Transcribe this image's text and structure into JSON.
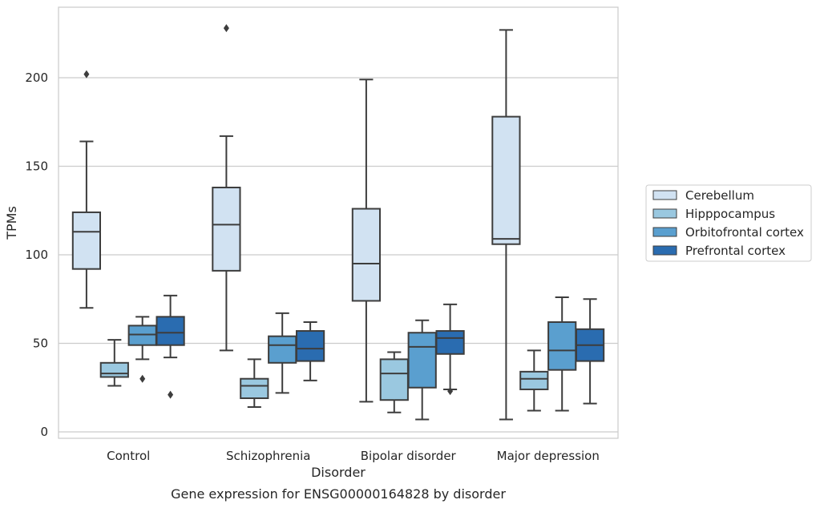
{
  "chart_data": {
    "type": "box",
    "caption": "Gene expression for ENSG00000164828 by disorder",
    "xlabel": "Disorder",
    "ylabel": "TPMs",
    "ylim": [
      -4,
      240
    ],
    "yticks": [
      0,
      50,
      100,
      150,
      200
    ],
    "grid": "horizontal",
    "legend_position": "right",
    "categories": [
      "Control",
      "Schizophrenia",
      "Bipolar disorder",
      "Major depression"
    ],
    "series": [
      {
        "name": "Cerebellum",
        "color": "#d1e2f2",
        "boxes": [
          {
            "whisker_low": 70,
            "q1": 92,
            "median": 113,
            "q3": 124,
            "whisker_high": 164,
            "outliers": [
              202
            ]
          },
          {
            "whisker_low": 46,
            "q1": 91,
            "median": 117,
            "q3": 138,
            "whisker_high": 167,
            "outliers": [
              228
            ]
          },
          {
            "whisker_low": 17,
            "q1": 74,
            "median": 95,
            "q3": 126,
            "whisker_high": 199,
            "outliers": []
          },
          {
            "whisker_low": 7,
            "q1": 106,
            "median": 109,
            "q3": 178,
            "whisker_high": 227,
            "outliers": []
          }
        ]
      },
      {
        "name": "Hipppocampus",
        "color": "#9ac8e0",
        "boxes": [
          {
            "whisker_low": 26,
            "q1": 31,
            "median": 33,
            "q3": 39,
            "whisker_high": 52,
            "outliers": []
          },
          {
            "whisker_low": 14,
            "q1": 19,
            "median": 26,
            "q3": 30,
            "whisker_high": 41,
            "outliers": []
          },
          {
            "whisker_low": 11,
            "q1": 18,
            "median": 33,
            "q3": 41,
            "whisker_high": 45,
            "outliers": []
          },
          {
            "whisker_low": 12,
            "q1": 24,
            "median": 30,
            "q3": 34,
            "whisker_high": 46,
            "outliers": []
          }
        ]
      },
      {
        "name": "Orbitofrontal cortex",
        "color": "#5a9fcf",
        "boxes": [
          {
            "whisker_low": 41,
            "q1": 49,
            "median": 55,
            "q3": 60,
            "whisker_high": 65,
            "outliers": [
              30
            ]
          },
          {
            "whisker_low": 22,
            "q1": 39,
            "median": 49,
            "q3": 54,
            "whisker_high": 67,
            "outliers": []
          },
          {
            "whisker_low": 7,
            "q1": 25,
            "median": 48,
            "q3": 56,
            "whisker_high": 63,
            "outliers": []
          },
          {
            "whisker_low": 12,
            "q1": 35,
            "median": 46,
            "q3": 62,
            "whisker_high": 76,
            "outliers": []
          }
        ]
      },
      {
        "name": "Prefrontal cortex",
        "color": "#2a6cb0",
        "boxes": [
          {
            "whisker_low": 42,
            "q1": 49,
            "median": 56,
            "q3": 65,
            "whisker_high": 77,
            "outliers": [
              21
            ]
          },
          {
            "whisker_low": 29,
            "q1": 40,
            "median": 47,
            "q3": 57,
            "whisker_high": 62,
            "outliers": []
          },
          {
            "whisker_low": 24,
            "q1": 44,
            "median": 53,
            "q3": 57,
            "whisker_high": 72,
            "outliers": [
              23
            ]
          },
          {
            "whisker_low": 16,
            "q1": 40,
            "median": 49,
            "q3": 58,
            "whisker_high": 75,
            "outliers": []
          }
        ]
      }
    ]
  }
}
